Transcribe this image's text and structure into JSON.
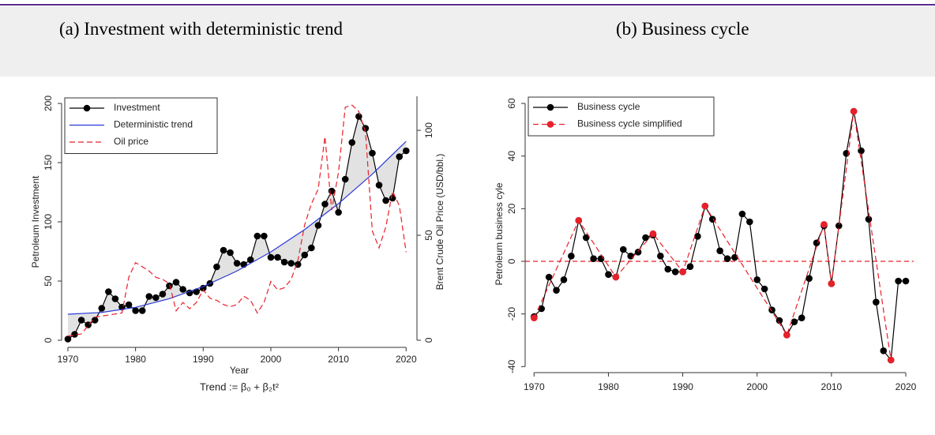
{
  "chart_data": [
    {
      "type": "line",
      "caption": "(a) Investment with deterministic trend",
      "xlabel": "Year",
      "note": "Trend := β₀ + β₂t²",
      "ylabel": "Petroleum Investment",
      "y2label": "Brent Crude Oil Price (USD/bbl.)",
      "xlim": [
        1969.07,
        2021.6
      ],
      "ylim": [
        -6,
        206
      ],
      "y2lim": [
        -3.4,
        116.2
      ],
      "xticks": [
        1970,
        1980,
        1990,
        2000,
        2010,
        2020
      ],
      "yticks": [
        0,
        50,
        100,
        150,
        200
      ],
      "y2ticks": [
        0,
        50,
        100
      ],
      "legend": "top-left",
      "shade": true,
      "series": [
        {
          "name": "Investment",
          "color": "#000000",
          "markers": true,
          "dash": false,
          "x": [
            1970,
            1971,
            1972,
            1973,
            1974,
            1975,
            1976,
            1977,
            1978,
            1979,
            1980,
            1981,
            1982,
            1983,
            1984,
            1985,
            1986,
            1987,
            1988,
            1989,
            1990,
            1991,
            1992,
            1993,
            1994,
            1995,
            1996,
            1997,
            1998,
            1999,
            2000,
            2001,
            2002,
            2003,
            2004,
            2005,
            2006,
            2007,
            2008,
            2009,
            2010,
            2011,
            2012,
            2013,
            2014,
            2015,
            2016,
            2017,
            2018,
            2019,
            2020
          ],
          "values": [
            1,
            5,
            17,
            13,
            17,
            27,
            41,
            35,
            28,
            30,
            25,
            25,
            37,
            36,
            39,
            46,
            49,
            43,
            40,
            41,
            44,
            48,
            62,
            76,
            74,
            65,
            64,
            68,
            88,
            88,
            70,
            70,
            66,
            65,
            64,
            72,
            78,
            97,
            115,
            126,
            108,
            136,
            167,
            189,
            179,
            158,
            131,
            118,
            120,
            155,
            160
          ]
        },
        {
          "name": "Deterministic trend",
          "color": "#2b3bd6",
          "markers": false,
          "dash": false,
          "x": [
            1970,
            1975,
            1980,
            1985,
            1990,
            1995,
            2000,
            2005,
            2010,
            2015,
            2020
          ],
          "values": [
            22,
            23.5,
            27.8,
            35.1,
            45.4,
            58.5,
            74.6,
            93.5,
            115.4,
            140.3,
            168
          ]
        },
        {
          "name": "Oil price",
          "color": "#e8202a",
          "markers": false,
          "dash": true,
          "axis": "y2",
          "x": [
            1970,
            1972,
            1974,
            1976,
            1978,
            1979,
            1980,
            1981,
            1982,
            1983,
            1984,
            1985,
            1986,
            1987,
            1988,
            1989,
            1990,
            1991,
            1992,
            1993,
            1994,
            1995,
            1996,
            1997,
            1998,
            1999,
            2000,
            2001,
            2002,
            2003,
            2004,
            2005,
            2006,
            2007,
            2008,
            2009,
            2010,
            2011,
            2012,
            2013,
            2014,
            2015,
            2016,
            2017,
            2018,
            2019,
            2020
          ],
          "values": [
            2,
            3,
            11,
            12,
            13,
            30,
            37,
            35,
            33,
            30,
            29,
            27,
            14,
            18,
            15,
            18,
            24,
            20,
            19,
            17,
            16,
            17,
            21,
            19,
            13,
            18,
            28,
            24,
            25,
            29,
            38,
            55,
            65,
            72,
            97,
            62,
            80,
            111,
            112,
            109,
            99,
            52,
            44,
            54,
            71,
            64,
            42
          ]
        }
      ]
    },
    {
      "type": "line",
      "caption": "(b) Business cycle",
      "ylabel": "Petroleum business cyle",
      "xlim": [
        1968.8,
        2021.06
      ],
      "ylim": [
        -42.3,
        63
      ],
      "xticks": [
        1970,
        1980,
        1990,
        2000,
        2010,
        2020
      ],
      "yticks": [
        -40,
        -20,
        0,
        20,
        40,
        60
      ],
      "legend": "top-left",
      "reference_line": 0,
      "reference_color": "#e8202a",
      "series": [
        {
          "name": "Business cycle",
          "color": "#000000",
          "markers": true,
          "dash": false,
          "x": [
            1970,
            1971,
            1972,
            1973,
            1974,
            1975,
            1976,
            1977,
            1978,
            1979,
            1980,
            1981,
            1982,
            1983,
            1984,
            1985,
            1986,
            1987,
            1988,
            1989,
            1990,
            1991,
            1992,
            1993,
            1994,
            1995,
            1996,
            1997,
            1998,
            1999,
            2000,
            2001,
            2002,
            2003,
            2004,
            2005,
            2006,
            2007,
            2008,
            2009,
            2010,
            2011,
            2012,
            2013,
            2014,
            2015,
            2016,
            2017,
            2018,
            2019,
            2020
          ],
          "values": [
            -21,
            -18,
            -6,
            -11,
            -7,
            2,
            15.5,
            9,
            1,
            1,
            -5,
            -6,
            4.5,
            2,
            3.5,
            9,
            10,
            2,
            -3,
            -4,
            -4,
            -2,
            9.5,
            21,
            16,
            4,
            1,
            1.5,
            18,
            15,
            -7,
            -10.5,
            -18.5,
            -22.5,
            -28,
            -23,
            -21.5,
            -6.5,
            7,
            13.5,
            -8.5,
            13.5,
            41,
            57,
            42,
            16,
            -15.5,
            -34,
            -37.5,
            -7.5,
            -7.5
          ]
        },
        {
          "name": "Business cycle simplified",
          "color": "#e8202a",
          "markers": true,
          "dash": true,
          "x": [
            1970,
            1976,
            1981,
            1986,
            1990,
            1993,
            2004,
            2009,
            2010,
            2013,
            2018
          ],
          "values": [
            -21.5,
            15.5,
            -6,
            10.5,
            -4,
            21,
            -28,
            14,
            -8.5,
            57,
            -37.5
          ]
        }
      ]
    }
  ]
}
